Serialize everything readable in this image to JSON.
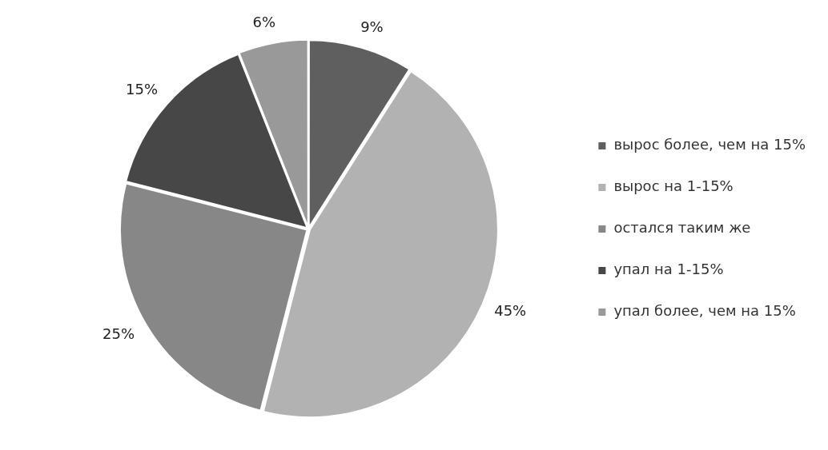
{
  "chart_data": {
    "type": "pie",
    "categories": [
      "вырос более, чем на 15%",
      "вырос на 1-15%",
      "остался таким же",
      "упал на 1-15%",
      "упал более, чем на 15%"
    ],
    "values": [
      9,
      45,
      25,
      15,
      6
    ],
    "colors": [
      "#5f5f5f",
      "#b2b2b2",
      "#878787",
      "#474747",
      "#999999"
    ],
    "value_labels": [
      "9%",
      "45%",
      "25%",
      "15%",
      "6%"
    ],
    "legend": "right"
  }
}
